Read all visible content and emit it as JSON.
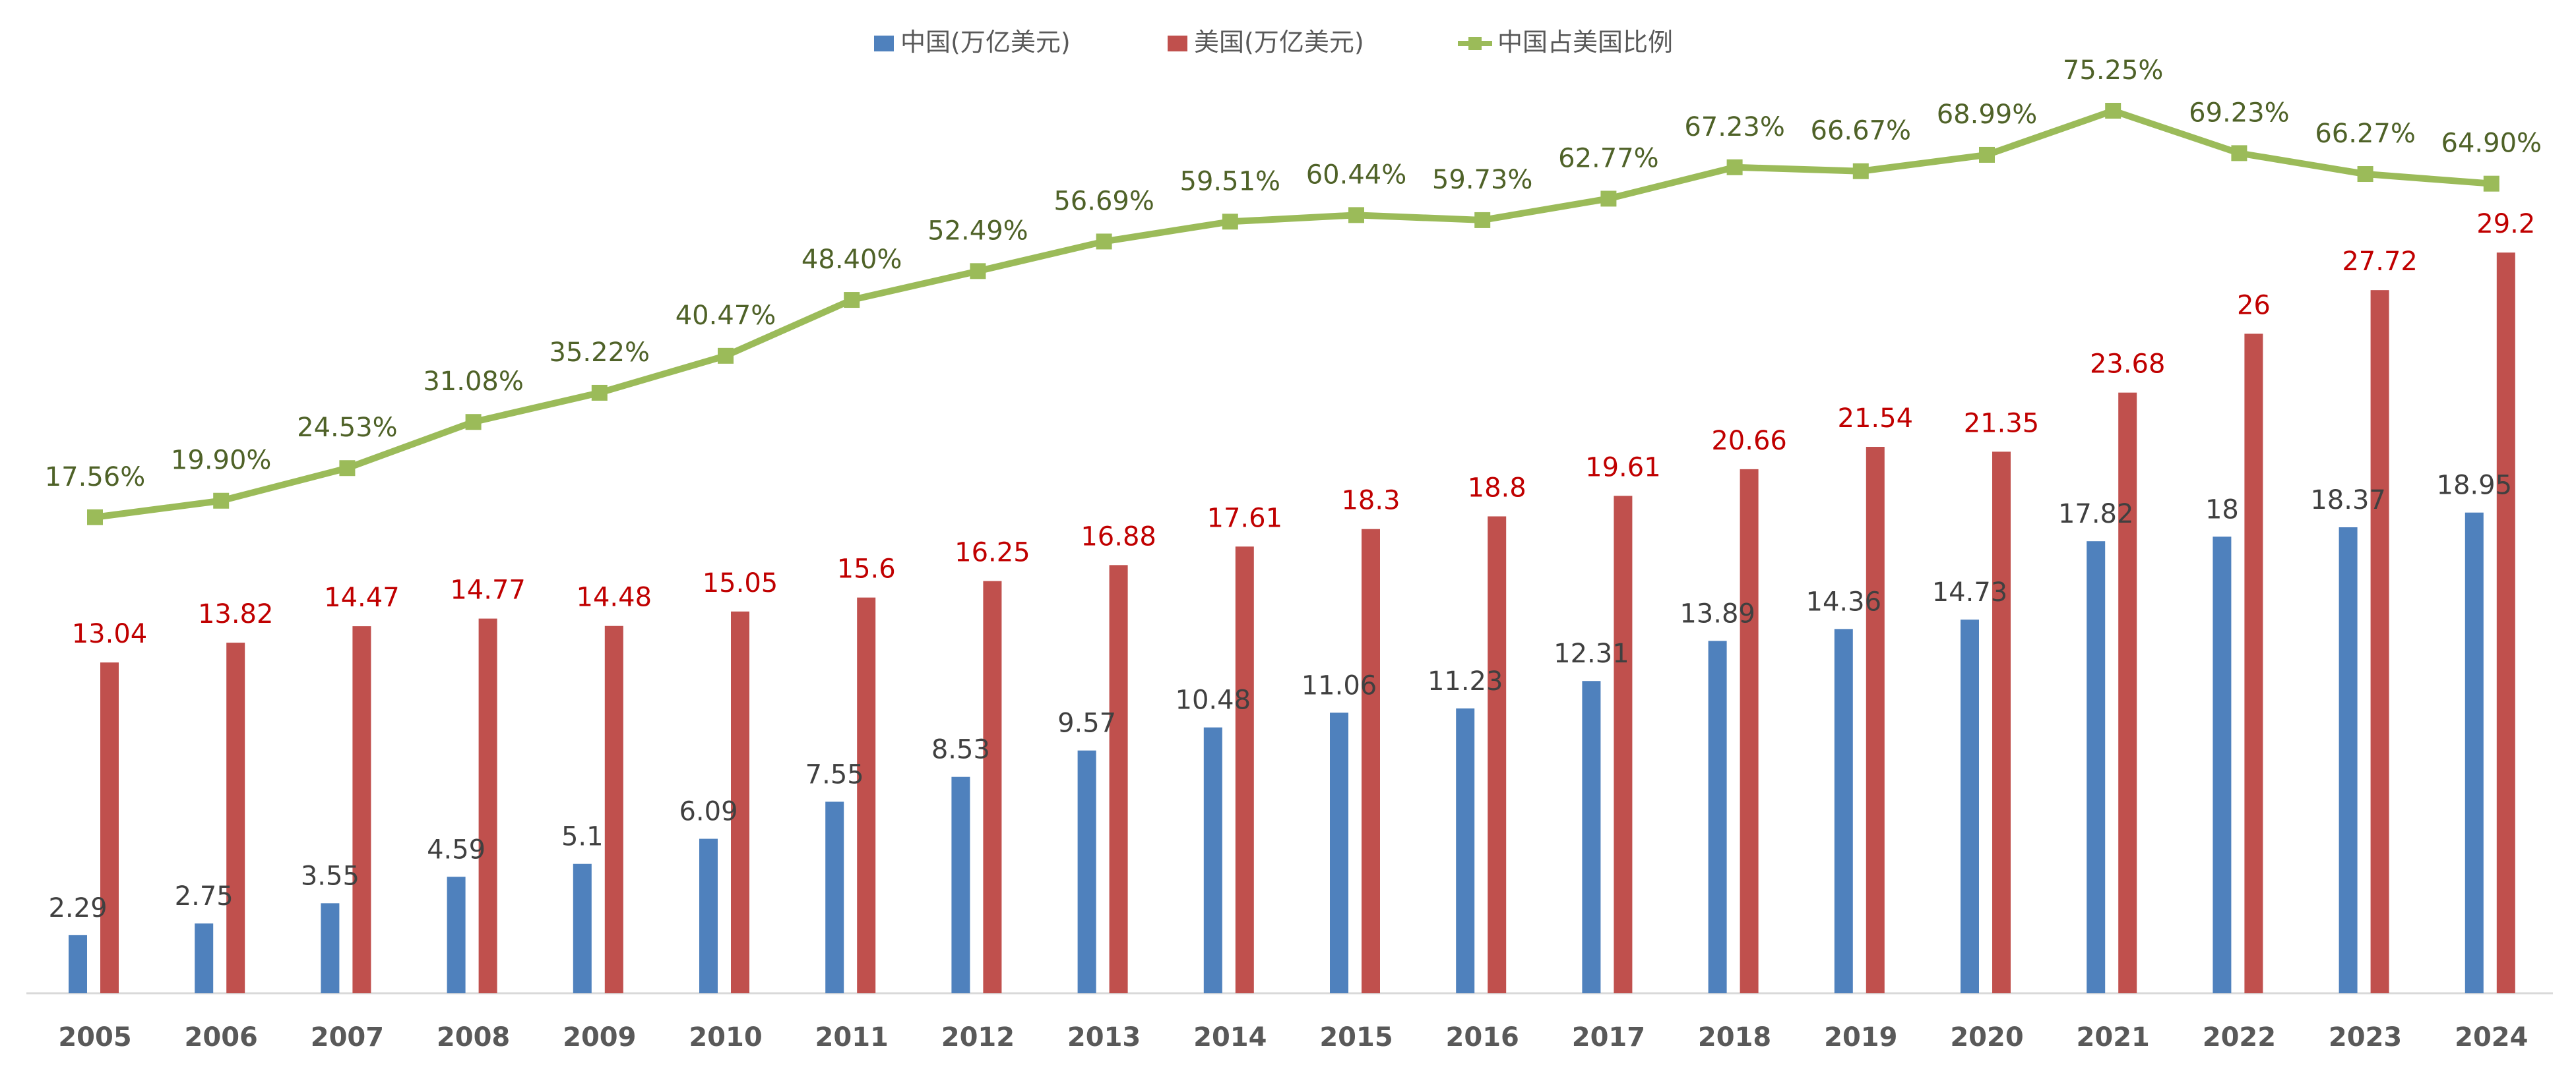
{
  "chart_data": {
    "type": "bar+line",
    "title": "",
    "categories": [
      "2005",
      "2006",
      "2007",
      "2008",
      "2009",
      "2010",
      "2011",
      "2012",
      "2013",
      "2014",
      "2015",
      "2016",
      "2017",
      "2018",
      "2019",
      "2020",
      "2021",
      "2022",
      "2023",
      "2024"
    ],
    "series": [
      {
        "name": "中国(万亿美元)",
        "type": "bar",
        "axis": "primary",
        "color": "#4f81bd",
        "label_color": "#404040",
        "values": [
          2.29,
          2.75,
          3.55,
          4.59,
          5.1,
          6.09,
          7.55,
          8.53,
          9.57,
          10.48,
          11.06,
          11.23,
          12.31,
          13.89,
          14.36,
          14.73,
          17.82,
          18,
          18.37,
          18.95
        ],
        "labels": [
          "2.29",
          "2.75",
          "3.55",
          "4.59",
          "5.1",
          "6.09",
          "7.55",
          "8.53",
          "9.57",
          "10.48",
          "11.06",
          "11.23",
          "12.31",
          "13.89",
          "14.36",
          "14.73",
          "17.82",
          "18",
          "18.37",
          "18.95"
        ]
      },
      {
        "name": "美国(万亿美元)",
        "type": "bar",
        "axis": "primary",
        "color": "#c0504d",
        "label_color": "#c00000",
        "values": [
          13.04,
          13.82,
          14.47,
          14.77,
          14.48,
          15.05,
          15.6,
          16.25,
          16.88,
          17.61,
          18.3,
          18.8,
          19.61,
          20.66,
          21.54,
          21.35,
          23.68,
          26,
          27.72,
          29.2
        ],
        "labels": [
          "13.04",
          "13.82",
          "14.47",
          "14.77",
          "14.48",
          "15.05",
          "15.6",
          "16.25",
          "16.88",
          "17.61",
          "18.3",
          "18.8",
          "19.61",
          "20.66",
          "21.54",
          "21.35",
          "23.68",
          "26",
          "27.72",
          "29.2"
        ]
      },
      {
        "name": "中国占美国比例",
        "type": "line",
        "axis": "secondary",
        "color": "#9bbb59",
        "label_color": "#4f6228",
        "values": [
          17.56,
          19.9,
          24.53,
          31.08,
          35.22,
          40.47,
          48.4,
          52.49,
          56.69,
          59.51,
          60.44,
          59.73,
          62.77,
          67.23,
          66.67,
          68.99,
          75.25,
          69.23,
          66.27,
          64.9
        ],
        "labels": [
          "17.56%",
          "19.90%",
          "24.53%",
          "31.08%",
          "35.22%",
          "40.47%",
          "48.40%",
          "52.49%",
          "56.69%",
          "59.51%",
          "60.44%",
          "59.73%",
          "62.77%",
          "67.23%",
          "66.67%",
          "68.99%",
          "75.25%",
          "69.23%",
          "66.27%",
          "64.90%"
        ]
      }
    ],
    "ylim": [
      0,
      35
    ],
    "ylim2": [
      -50,
      76
    ],
    "grid": false,
    "legend": "top",
    "axis_color": "#d9d9d9",
    "tick_color": "#595959"
  }
}
